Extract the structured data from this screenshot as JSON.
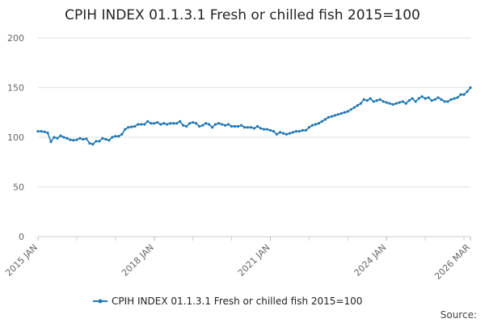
{
  "chart_data": {
    "type": "line",
    "title": "CPIH INDEX 01.1.3.1 Fresh or chilled fish 2015=100",
    "xlabel": "",
    "ylabel": "",
    "ylim": [
      0,
      200
    ],
    "yticks": [
      0,
      50,
      100,
      150,
      200
    ],
    "x_range": [
      "2015 JAN",
      "2026 MAR"
    ],
    "xticks": [
      "2015 JAN",
      "2018 JAN",
      "2021 JAN",
      "2024 JAN",
      "2026 MAR"
    ],
    "grid": true,
    "legend": "bottom-center",
    "source_label": "Source:",
    "series": [
      {
        "name": "CPIH INDEX 01.1.3.1 Fresh or chilled fish 2015=100",
        "color": "#1f77b4",
        "x": [
          "2015 JAN",
          "2015 FEB",
          "2015 MAR",
          "2015 APR",
          "2015 MAY",
          "2015 JUN",
          "2015 JUL",
          "2015 AUG",
          "2015 SEP",
          "2015 OCT",
          "2015 NOV",
          "2015 DEC",
          "2016 JAN",
          "2016 FEB",
          "2016 MAR",
          "2016 APR",
          "2016 MAY",
          "2016 JUN",
          "2016 JUL",
          "2016 AUG",
          "2016 SEP",
          "2016 OCT",
          "2016 NOV",
          "2016 DEC",
          "2017 JAN",
          "2017 FEB",
          "2017 MAR",
          "2017 APR",
          "2017 MAY",
          "2017 JUN",
          "2017 JUL",
          "2017 AUG",
          "2017 SEP",
          "2017 OCT",
          "2017 NOV",
          "2017 DEC",
          "2018 JAN",
          "2018 FEB",
          "2018 MAR",
          "2018 APR",
          "2018 MAY",
          "2018 JUN",
          "2018 JUL",
          "2018 AUG",
          "2018 SEP",
          "2018 OCT",
          "2018 NOV",
          "2018 DEC",
          "2019 JAN",
          "2019 FEB",
          "2019 MAR",
          "2019 APR",
          "2019 MAY",
          "2019 JUN",
          "2019 JUL",
          "2019 AUG",
          "2019 SEP",
          "2019 OCT",
          "2019 NOV",
          "2019 DEC",
          "2020 JAN",
          "2020 FEB",
          "2020 MAR",
          "2020 APR",
          "2020 MAY",
          "2020 JUN",
          "2020 JUL",
          "2020 AUG",
          "2020 SEP",
          "2020 OCT",
          "2020 NOV",
          "2020 DEC",
          "2021 JAN",
          "2021 FEB",
          "2021 MAR",
          "2021 APR",
          "2021 MAY",
          "2021 JUN",
          "2021 JUL",
          "2021 AUG",
          "2021 SEP",
          "2021 OCT",
          "2021 NOV",
          "2021 DEC",
          "2022 JAN",
          "2022 FEB",
          "2022 MAR",
          "2022 APR",
          "2022 MAY",
          "2022 JUN",
          "2022 JUL",
          "2022 AUG",
          "2022 SEP",
          "2022 OCT",
          "2022 NOV",
          "2022 DEC",
          "2023 JAN",
          "2023 FEB",
          "2023 MAR",
          "2023 APR",
          "2023 MAY",
          "2023 JUN",
          "2023 JUL",
          "2023 AUG",
          "2023 SEP",
          "2023 OCT",
          "2023 NOV",
          "2023 DEC",
          "2024 JAN",
          "2024 FEB",
          "2024 MAR",
          "2024 APR",
          "2024 MAY",
          "2024 JUN",
          "2024 JUL",
          "2024 AUG",
          "2024 SEP",
          "2024 OCT",
          "2024 NOV",
          "2024 DEC",
          "2025 JAN",
          "2025 FEB",
          "2025 MAR",
          "2025 APR",
          "2025 MAY",
          "2025 JUN",
          "2025 JUL",
          "2025 AUG",
          "2025 SEP",
          "2025 OCT",
          "2025 NOV",
          "2025 DEC",
          "2026 JAN",
          "2026 FEB",
          "2026 MAR"
        ],
        "values": [
          106,
          106,
          105.5,
          104.5,
          95.5,
          100,
          99,
          101.5,
          100,
          99,
          97.5,
          97,
          97.5,
          99,
          98,
          98.5,
          94,
          93,
          96,
          96,
          99,
          98,
          97,
          100,
          101,
          101,
          103,
          108,
          110,
          110.5,
          111,
          113,
          113,
          113,
          116,
          114,
          114,
          115,
          113,
          114,
          113,
          114,
          114,
          114,
          116,
          112,
          111,
          114,
          115,
          114,
          111,
          112,
          114,
          113,
          110,
          113,
          114,
          113,
          112,
          113,
          111,
          111,
          111,
          112,
          110,
          110,
          110,
          109,
          111,
          109,
          108,
          108,
          107,
          106,
          103,
          105,
          104,
          103,
          104,
          105,
          106,
          106,
          107,
          107,
          110,
          112,
          113,
          114,
          116,
          118,
          120,
          121,
          122,
          123,
          124,
          125,
          126,
          128,
          130,
          132,
          134,
          138,
          137,
          139,
          136,
          137,
          138,
          136,
          135,
          134,
          133,
          134,
          135,
          136,
          134,
          137,
          139,
          136,
          139,
          141,
          139,
          140,
          137,
          138,
          140,
          138,
          136,
          136,
          138,
          139,
          140,
          143,
          143,
          146,
          150
        ]
      }
    ]
  }
}
